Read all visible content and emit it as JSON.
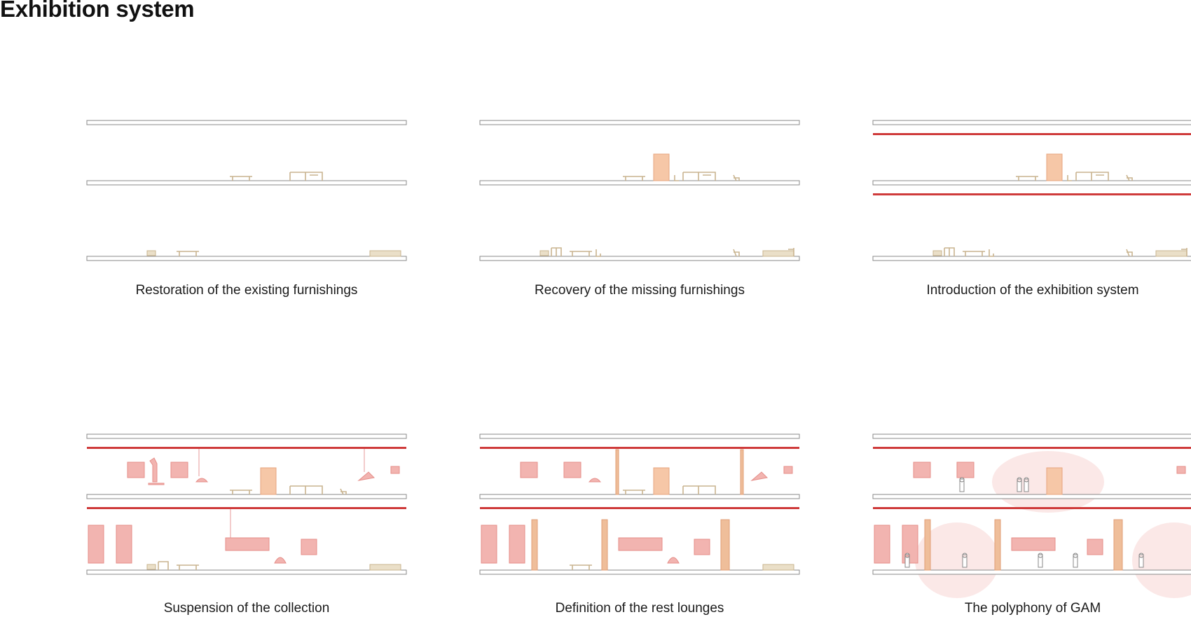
{
  "title": "Exhibition system",
  "panels": [
    {
      "caption": "Restoration of the existing furnishings"
    },
    {
      "caption": "Recovery of the missing furnishings"
    },
    {
      "caption": "Introduction of the exhibition system"
    },
    {
      "caption": "Suspension of the collection"
    },
    {
      "caption": "Definition of the rest lounges"
    },
    {
      "caption": "The polyphony of GAM"
    }
  ],
  "colors": {
    "slab_outline": "#8a8a8a",
    "furnishings": "#c9b48f",
    "exhibition_rail": "#cf3b3b",
    "suspended_artwork": "#f2b4b0",
    "cabinet": "#f6c7a7",
    "lounge_halo": "#f8d6d4"
  }
}
